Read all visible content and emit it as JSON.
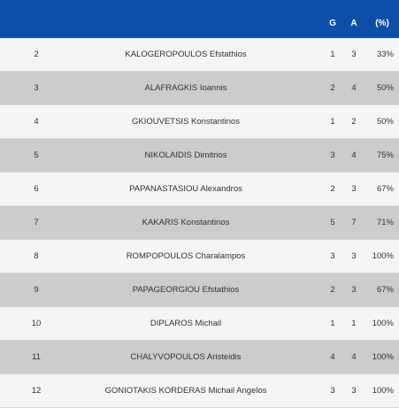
{
  "header": {
    "g_label": "G",
    "a_label": "A",
    "pct_label": "(%)"
  },
  "rows": [
    {
      "num": "2",
      "name": "KALOGEROPOULOS Efstathios",
      "g": "1",
      "a": "3",
      "pct": "33%"
    },
    {
      "num": "3",
      "name": "ALAFRAGKIS Ioannis",
      "g": "2",
      "a": "4",
      "pct": "50%"
    },
    {
      "num": "4",
      "name": "GKIOUVETSIS Konstantinos",
      "g": "1",
      "a": "2",
      "pct": "50%"
    },
    {
      "num": "5",
      "name": "NIKOLAIDIS Dimitrios",
      "g": "3",
      "a": "4",
      "pct": "75%"
    },
    {
      "num": "6",
      "name": "PAPANASTASIOU Alexandros",
      "g": "2",
      "a": "3",
      "pct": "67%"
    },
    {
      "num": "7",
      "name": "KAKARIS Konstantinos",
      "g": "5",
      "a": "7",
      "pct": "71%"
    },
    {
      "num": "8",
      "name": "ROMPOPOULOS Charalampos",
      "g": "3",
      "a": "3",
      "pct": "100%"
    },
    {
      "num": "9",
      "name": "PAPAGEORGIOU Efstathios",
      "g": "2",
      "a": "3",
      "pct": "67%"
    },
    {
      "num": "10",
      "name": "DIPLAROS Michail",
      "g": "1",
      "a": "1",
      "pct": "100%"
    },
    {
      "num": "11",
      "name": "CHALYVOPOULOS Aristeidis",
      "g": "4",
      "a": "4",
      "pct": "100%"
    },
    {
      "num": "12",
      "name": "GONIOTAKIS KORDERAS Michail Angelos",
      "g": "3",
      "a": "3",
      "pct": "100%"
    }
  ],
  "colors": {
    "header_bg": "#0d4fa8",
    "row_light": "#f5f5f5",
    "row_dark": "#cccccc"
  }
}
